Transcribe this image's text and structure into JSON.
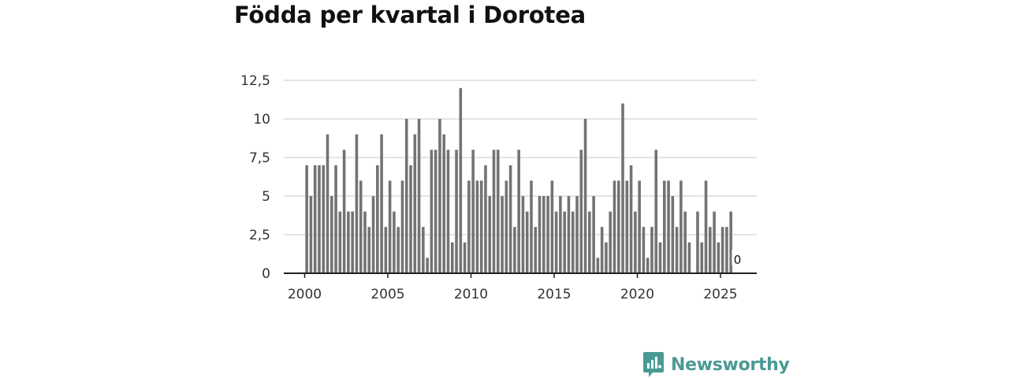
{
  "title": "Födda per kvartal i Dorotea",
  "brand": {
    "name": "Newsworthy",
    "color": "#4a9a94",
    "logo_icon": "newsworthy-bar-chart-speech-bubble-icon"
  },
  "chart_data": {
    "type": "bar",
    "title": "Födda per kvartal i Dorotea",
    "xlabel": "",
    "ylabel": "",
    "start_year": 2000,
    "periods_per_year": 4,
    "values": [
      7,
      5,
      7,
      7,
      7,
      9,
      5,
      7,
      4,
      8,
      4,
      4,
      9,
      6,
      4,
      3,
      5,
      7,
      9,
      3,
      6,
      4,
      3,
      6,
      10,
      7,
      9,
      10,
      3,
      1,
      8,
      8,
      10,
      9,
      8,
      2,
      8,
      12,
      2,
      6,
      8,
      6,
      6,
      7,
      5,
      8,
      8,
      5,
      6,
      7,
      3,
      8,
      5,
      4,
      6,
      3,
      5,
      5,
      5,
      6,
      4,
      5,
      4,
      5,
      4,
      5,
      8,
      10,
      4,
      5,
      1,
      3,
      2,
      4,
      6,
      6,
      11,
      6,
      7,
      4,
      6,
      3,
      1,
      3,
      8,
      2,
      6,
      6,
      5,
      3,
      6,
      4,
      2,
      0,
      4,
      2,
      6,
      3,
      4,
      2,
      3,
      3,
      4,
      0
    ],
    "x_ticks": [
      2000,
      2005,
      2010,
      2015,
      2020,
      2025
    ],
    "y_ticks": [
      0,
      2.5,
      5,
      7.5,
      10,
      12.5
    ],
    "y_tick_labels": [
      "0",
      "2,5",
      "5",
      "7,5",
      "10",
      "12,5"
    ],
    "ylim": [
      0,
      12.5
    ],
    "xlim": [
      2000,
      2027
    ],
    "grid": true,
    "bar_color": "#737373",
    "annotations": [
      {
        "index": 103,
        "text": "0"
      }
    ]
  }
}
